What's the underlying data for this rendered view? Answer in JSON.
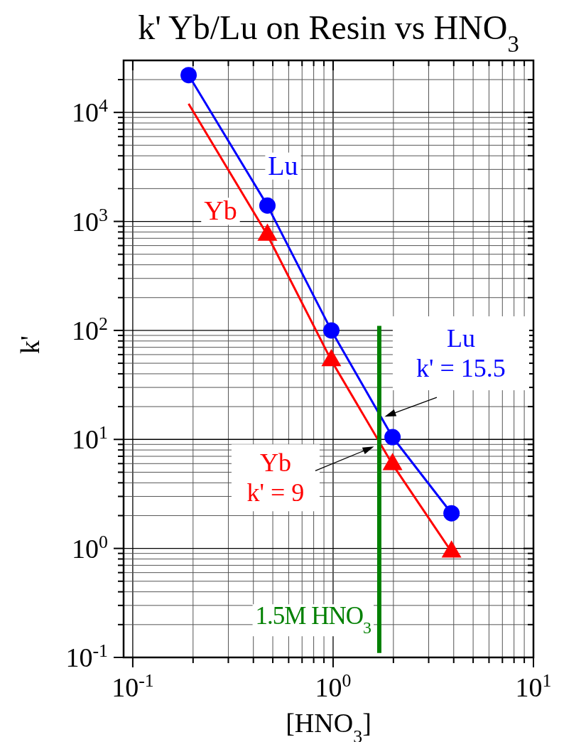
{
  "chart_data": {
    "type": "line",
    "title": "k' Yb/Lu on Resin vs HNO$_{3}$",
    "xlabel": "[HNO$_{3}$]",
    "ylabel": "k'",
    "log": "xy",
    "xlim": [
      0.09,
      10
    ],
    "ylim": [
      0.1,
      30000
    ],
    "xticks": [
      {
        "value": 0.1,
        "label": "10$^{-1}$"
      },
      {
        "value": 0.2,
        "label": null
      },
      {
        "value": 0.3,
        "label": null
      },
      {
        "value": 0.4,
        "label": null
      },
      {
        "value": 0.5,
        "label": null
      },
      {
        "value": 0.6,
        "label": null
      },
      {
        "value": 0.7,
        "label": null
      },
      {
        "value": 0.8,
        "label": null
      },
      {
        "value": 0.9,
        "label": null
      },
      {
        "value": 1,
        "label": "10$^{0}$"
      },
      {
        "value": 2,
        "label": null
      },
      {
        "value": 3,
        "label": null
      },
      {
        "value": 4,
        "label": null
      },
      {
        "value": 5,
        "label": null
      },
      {
        "value": 6,
        "label": null
      },
      {
        "value": 7,
        "label": null
      },
      {
        "value": 8,
        "label": null
      },
      {
        "value": 9,
        "label": null
      },
      {
        "value": 10,
        "label": "10$^{1}$"
      }
    ],
    "yticks": [
      {
        "value": 0.1,
        "label": "10$^{-1}$"
      },
      {
        "value": 0.2,
        "label": null
      },
      {
        "value": 0.3,
        "label": null
      },
      {
        "value": 0.4,
        "label": null
      },
      {
        "value": 0.5,
        "label": null
      },
      {
        "value": 0.6,
        "label": null
      },
      {
        "value": 0.7,
        "label": null
      },
      {
        "value": 0.8,
        "label": null
      },
      {
        "value": 0.9,
        "label": null
      },
      {
        "value": 1,
        "label": "10$^{0}$"
      },
      {
        "value": 2,
        "label": null
      },
      {
        "value": 3,
        "label": null
      },
      {
        "value": 4,
        "label": null
      },
      {
        "value": 5,
        "label": null
      },
      {
        "value": 6,
        "label": null
      },
      {
        "value": 7,
        "label": null
      },
      {
        "value": 8,
        "label": null
      },
      {
        "value": 9,
        "label": null
      },
      {
        "value": 10,
        "label": "10$^{1}$"
      },
      {
        "value": 20,
        "label": null
      },
      {
        "value": 30,
        "label": null
      },
      {
        "value": 40,
        "label": null
      },
      {
        "value": 50,
        "label": null
      },
      {
        "value": 60,
        "label": null
      },
      {
        "value": 70,
        "label": null
      },
      {
        "value": 80,
        "label": null
      },
      {
        "value": 90,
        "label": null
      },
      {
        "value": 100,
        "label": "10$^{2}$"
      },
      {
        "value": 200,
        "label": null
      },
      {
        "value": 300,
        "label": null
      },
      {
        "value": 400,
        "label": null
      },
      {
        "value": 500,
        "label": null
      },
      {
        "value": 600,
        "label": null
      },
      {
        "value": 700,
        "label": null
      },
      {
        "value": 800,
        "label": null
      },
      {
        "value": 900,
        "label": null
      },
      {
        "value": 1000,
        "label": "10$^{3}$"
      },
      {
        "value": 2000,
        "label": null
      },
      {
        "value": 3000,
        "label": null
      },
      {
        "value": 4000,
        "label": null
      },
      {
        "value": 5000,
        "label": null
      },
      {
        "value": 6000,
        "label": null
      },
      {
        "value": 7000,
        "label": null
      },
      {
        "value": 8000,
        "label": null
      },
      {
        "value": 9000,
        "label": null
      },
      {
        "value": 10000,
        "label": "10$^{4}$"
      },
      {
        "value": 20000,
        "label": null
      }
    ],
    "grid": true,
    "series": [
      {
        "name": "Lu",
        "type": "line",
        "marker": "circle",
        "color": "#0000ff",
        "x": [
          0.19,
          0.47,
          0.98,
          1.98,
          3.9
        ],
        "values": [
          22000,
          1400,
          100,
          10.5,
          2.1
        ]
      },
      {
        "name": "Yb",
        "type": "line",
        "marker": "none",
        "color": "#ff0000",
        "x": [
          0.19,
          0.47,
          0.98,
          1.98,
          3.9
        ],
        "values": [
          12000,
          750,
          53,
          5.9,
          0.93
        ]
      },
      {
        "type": "scatter",
        "marker": "triangle",
        "color": "#ff0000",
        "x": [
          0.47,
          0.98,
          1.98,
          3.9
        ],
        "values": [
          750,
          53,
          5.9,
          0.93
        ]
      },
      {
        "name": "1.5M HNO$_{3}$",
        "type": "line",
        "marker": "none",
        "color": "#008000",
        "x": [
          1.7,
          1.7
        ],
        "values": [
          0.11,
          110
        ]
      }
    ],
    "annotations": [
      {
        "text": "Lu\nk' = 15.5",
        "x": 1.7,
        "y": 15.5
      },
      {
        "text": "Yb\nk' = 9",
        "x": 1.7,
        "y": 9
      }
    ]
  }
}
